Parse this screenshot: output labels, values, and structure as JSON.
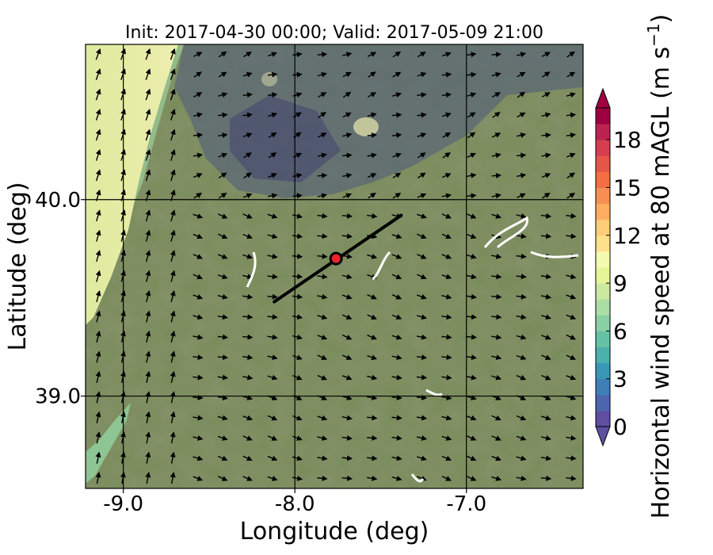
{
  "figure": {
    "title": "Init: 2017-04-30 00:00; Valid: 2017-05-09 21:00"
  },
  "map": {
    "xlabel": "Longitude (deg)",
    "ylabel": "Latitude (deg)",
    "lon_range": [
      -9.22,
      -6.32
    ],
    "lat_range": [
      38.53,
      40.79
    ],
    "x_ticks": [
      {
        "value": -9.0,
        "label": "-9.0"
      },
      {
        "value": -8.0,
        "label": "-8.0"
      },
      {
        "value": -7.0,
        "label": "-7.0"
      }
    ],
    "y_ticks": [
      {
        "value": 40.0,
        "label": "40.0"
      },
      {
        "value": 39.0,
        "label": "39.0"
      }
    ],
    "grid": true,
    "transect": {
      "start": {
        "lon": -8.12,
        "lat": 39.48
      },
      "end": {
        "lon": -7.38,
        "lat": 39.92
      }
    },
    "site_marker": {
      "lon": -7.76,
      "lat": 39.7,
      "fill_color": "#e8252e",
      "edge_color": "#000000"
    },
    "wind_field": {
      "description_rows": 22,
      "description_cols": 20
    }
  },
  "colorbar": {
    "label_prefix": "Horizontal wind speed at 80 mAGL (m s",
    "label_exponent": "−1",
    "label_suffix": ")",
    "min": 0,
    "max": 20,
    "extend": "both",
    "ticks": [
      {
        "value": 0,
        "label": "0"
      },
      {
        "value": 3,
        "label": "3"
      },
      {
        "value": 6,
        "label": "6"
      },
      {
        "value": 9,
        "label": "9"
      },
      {
        "value": 12,
        "label": "12"
      },
      {
        "value": 15,
        "label": "15"
      },
      {
        "value": 18,
        "label": "18"
      }
    ],
    "colors": [
      "#5e4fa2",
      "#4d65ad",
      "#3f7fb8",
      "#3a98b7",
      "#4cb1ab",
      "#66c2a5",
      "#89d0a4",
      "#abdda4",
      "#cbe99f",
      "#e6f598",
      "#f4fab0",
      "#fee08b",
      "#fdcd77",
      "#fdae61",
      "#f88f52",
      "#f46d43",
      "#e55649",
      "#d53e4f",
      "#bd2350",
      "#9e0142"
    ]
  }
}
